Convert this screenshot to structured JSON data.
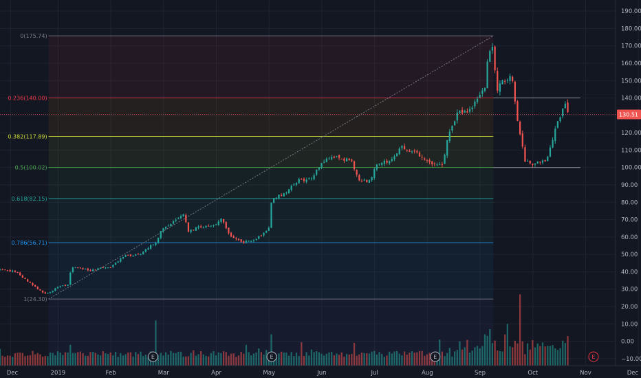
{
  "chart_data": {
    "type": "candlestick",
    "colors": {
      "background": "#131722",
      "grid": "#1f2330",
      "up": "#26a69a",
      "down": "#ef5350",
      "axis_text": "#b2b5be",
      "current_price_bg": "#ef5350"
    },
    "y_axis": {
      "position": "right",
      "ticks": [
        -10,
        0,
        10,
        20,
        30,
        40,
        50,
        60,
        70,
        80,
        90,
        100,
        110,
        120,
        130,
        140,
        150,
        160,
        170,
        180,
        190
      ],
      "tick_labels": [
        "−10.00",
        "0.00",
        "10.00",
        "20.00",
        "30.00",
        "40.00",
        "50.00",
        "60.00",
        "70.00",
        "80.00",
        "90.00",
        "100.00",
        "110.00",
        "120.00",
        "130.00",
        "140.00",
        "150.00",
        "160.00",
        "170.00",
        "180.00",
        "190.00"
      ],
      "range": [
        -14,
        194
      ]
    },
    "x_axis": {
      "labels": [
        "Dec",
        "2019",
        "Feb",
        "Mar",
        "Apr",
        "May",
        "Jun",
        "Jul",
        "Aug",
        "Sep",
        "Oct",
        "Nov",
        "Dec"
      ],
      "label_positions": [
        -0.9,
        0,
        1,
        2,
        3,
        4,
        5,
        6,
        7,
        8,
        9,
        10,
        11
      ],
      "range": [
        -1.1,
        11.05
      ]
    },
    "current_price": {
      "value": 130.51,
      "label": "130.51"
    },
    "fib_retracement": {
      "start_month": -0.18,
      "end_month": 8.25,
      "levels": [
        {
          "ratio": "0",
          "price": 175.74,
          "label": "0(175.74)",
          "color": "#787b86"
        },
        {
          "ratio": "0.236",
          "price": 140.0,
          "label": "0.236(140.00)",
          "color": "#f23645"
        },
        {
          "ratio": "0.382",
          "price": 117.89,
          "label": "0.382(117.89)",
          "color": "#cddc39"
        },
        {
          "ratio": "0.5",
          "price": 100.02,
          "label": "0.5(100.02)",
          "color": "#4caf50"
        },
        {
          "ratio": "0.618",
          "price": 82.15,
          "label": "0.618(82.15)",
          "color": "#26a69a"
        },
        {
          "ratio": "0.786",
          "price": 56.71,
          "label": "0.786(56.71)",
          "color": "#2196f3"
        },
        {
          "ratio": "1",
          "price": 24.3,
          "label": "1(24.30)",
          "color": "#787b86"
        }
      ]
    },
    "horizontal_lines": [
      {
        "price": 140.0,
        "start_month": 8.25,
        "end_month": 9.9
      },
      {
        "price": 100.0,
        "start_month": 8.25,
        "end_month": 9.9
      }
    ],
    "trend_line": {
      "start_month": -0.18,
      "start_price": 24.3,
      "end_month": 8.25,
      "end_price": 175.74
    },
    "price_path": [
      [
        -1.1,
        41
      ],
      [
        -0.8,
        40
      ],
      [
        -0.55,
        34
      ],
      [
        -0.25,
        27
      ],
      [
        0.0,
        31
      ],
      [
        0.2,
        33
      ],
      [
        0.25,
        43
      ],
      [
        0.6,
        41
      ],
      [
        1.0,
        43
      ],
      [
        1.25,
        49
      ],
      [
        1.55,
        50
      ],
      [
        1.75,
        55
      ],
      [
        1.87,
        57
      ],
      [
        1.95,
        64
      ],
      [
        2.2,
        69
      ],
      [
        2.4,
        74
      ],
      [
        2.45,
        63
      ],
      [
        2.7,
        66
      ],
      [
        3.0,
        67
      ],
      [
        3.1,
        71
      ],
      [
        3.25,
        61
      ],
      [
        3.5,
        57
      ],
      [
        3.7,
        58
      ],
      [
        3.9,
        62
      ],
      [
        4.0,
        66
      ],
      [
        4.05,
        82
      ],
      [
        4.3,
        85
      ],
      [
        4.55,
        93
      ],
      [
        4.8,
        93
      ],
      [
        5.0,
        103
      ],
      [
        5.25,
        106
      ],
      [
        5.55,
        104
      ],
      [
        5.7,
        93
      ],
      [
        5.9,
        92
      ],
      [
        6.05,
        102
      ],
      [
        6.3,
        104
      ],
      [
        6.5,
        112
      ],
      [
        6.8,
        108
      ],
      [
        7.0,
        104
      ],
      [
        7.15,
        101
      ],
      [
        7.3,
        101
      ],
      [
        7.4,
        120
      ],
      [
        7.6,
        133
      ],
      [
        7.75,
        131
      ],
      [
        7.95,
        140
      ],
      [
        8.1,
        147
      ],
      [
        8.15,
        165
      ],
      [
        8.25,
        172
      ],
      [
        8.3,
        144
      ],
      [
        8.45,
        150
      ],
      [
        8.6,
        152
      ],
      [
        8.7,
        128
      ],
      [
        8.85,
        104
      ],
      [
        9.0,
        102
      ],
      [
        9.25,
        104
      ],
      [
        9.35,
        114
      ],
      [
        9.45,
        124
      ],
      [
        9.6,
        137
      ],
      [
        9.68,
        130.5
      ]
    ],
    "volume": {
      "spikes": [
        {
          "month": 1.84,
          "value": 22,
          "dir": "up"
        },
        {
          "month": 4.05,
          "value": 14,
          "dir": "up"
        },
        {
          "month": 7.25,
          "value": 11,
          "dir": "down"
        },
        {
          "month": 7.6,
          "value": 10,
          "dir": "down"
        },
        {
          "month": 8.1,
          "value": 14,
          "dir": "up"
        },
        {
          "month": 8.2,
          "value": 17,
          "dir": "down"
        },
        {
          "month": 8.5,
          "value": 20,
          "dir": "down"
        },
        {
          "month": 8.75,
          "value": 37,
          "dir": "down"
        },
        {
          "month": 9.65,
          "value": 13,
          "dir": "down"
        }
      ]
    },
    "events": [
      {
        "label": "E",
        "month": 1.8,
        "color": "#b2b5be"
      },
      {
        "label": "E",
        "month": 4.05,
        "color": "#b2b5be"
      },
      {
        "label": "E",
        "month": 7.15,
        "color": "#b2b5be"
      },
      {
        "label": "E",
        "month": 10.15,
        "color": "#f23645"
      }
    ]
  }
}
